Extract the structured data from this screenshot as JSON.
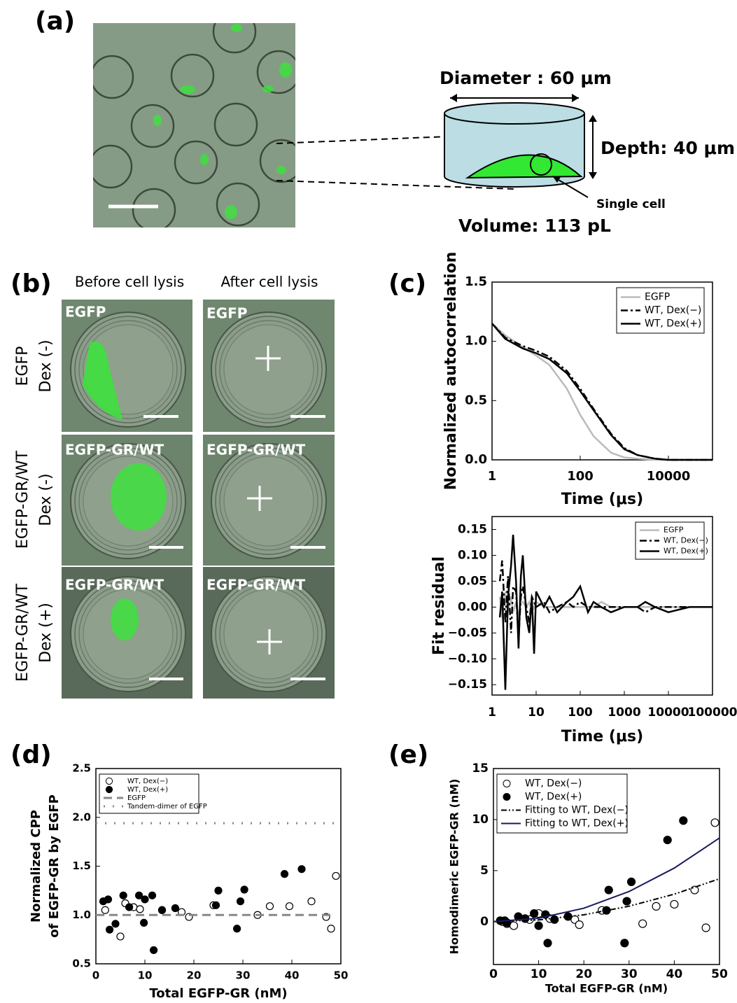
{
  "panel_labels": [
    "(a)",
    "(b)",
    "(c)",
    "(d)",
    "(e)"
  ],
  "panel_a": {
    "diameter": "Diameter : 60 μm",
    "depth": "Depth: 40 μm",
    "cell": "Single cell",
    "volume": "Volume: 113 pL"
  },
  "panel_b": {
    "columns": [
      "Before cell lysis",
      "After cell lysis"
    ],
    "rows": [
      [
        "EGFP",
        "Dex (-)"
      ],
      [
        "EGFP-GR/WT",
        "Dex (-)"
      ],
      [
        "EGFP-GR/WT",
        "Dex (+)"
      ]
    ],
    "image_labels": [
      [
        "EGFP",
        "EGFP"
      ],
      [
        "EGFP-GR/WT",
        "EGFP-GR/WT"
      ],
      [
        "EGFP-GR/WT",
        "EGFP-GR/WT"
      ]
    ]
  },
  "chart_data": [
    {
      "type": "line",
      "xscale": "log",
      "xlabel": "Time (μs)",
      "ylabel": "Normalized autocorrelation",
      "xlim": [
        1,
        100000
      ],
      "xticks": [
        1,
        100,
        10000
      ],
      "ylim": [
        0,
        1.5
      ],
      "yticks": [
        {
          "value": 0,
          "label": "0.0"
        },
        0.5,
        {
          "value": 1,
          "label": "1.0"
        },
        1.5
      ],
      "legend": "upper right",
      "series": [
        {
          "name": "EGFP",
          "color": "#bbbbbb",
          "style": "solid",
          "kind": "line",
          "x": [
            1,
            2,
            5,
            10,
            20,
            50,
            100,
            200,
            500,
            1000,
            2000,
            5000,
            10000,
            100000
          ],
          "values": [
            1.15,
            1.05,
            0.95,
            0.88,
            0.8,
            0.6,
            0.38,
            0.2,
            0.06,
            0.02,
            0.01,
            0,
            0,
            0
          ]
        },
        {
          "name": "WT, Dex(−)",
          "color": "#000000",
          "style": "dashdot",
          "kind": "line",
          "x": [
            1,
            2,
            5,
            10,
            20,
            50,
            100,
            200,
            500,
            1000,
            2000,
            5000,
            10000,
            100000
          ],
          "values": [
            1.15,
            1.03,
            0.96,
            0.92,
            0.87,
            0.75,
            0.6,
            0.43,
            0.22,
            0.1,
            0.04,
            0.01,
            0,
            0
          ]
        },
        {
          "name": "WT, Dex(+)",
          "color": "#000000",
          "style": "solid",
          "kind": "line",
          "x": [
            1,
            2,
            5,
            10,
            20,
            50,
            100,
            200,
            500,
            1000,
            2000,
            5000,
            10000,
            100000
          ],
          "values": [
            1.15,
            1.02,
            0.94,
            0.9,
            0.85,
            0.73,
            0.58,
            0.42,
            0.21,
            0.09,
            0.04,
            0.01,
            0,
            0
          ]
        }
      ]
    },
    {
      "type": "line",
      "xscale": "log",
      "xlabel": "Time (μs)",
      "ylabel": "Fit residual",
      "xlim": [
        1,
        100000
      ],
      "xticks": [
        1,
        10,
        100,
        1000,
        10000,
        100000
      ],
      "ylim": [
        -0.17,
        0.175
      ],
      "yticks": [
        {
          "value": -0.15,
          "label": "−0.15"
        },
        {
          "value": -0.1,
          "label": "−0.10"
        },
        {
          "value": -0.05,
          "label": "−0.05"
        },
        {
          "value": 0,
          "label": "0.00"
        },
        0.05,
        {
          "value": 0.1,
          "label": "0.10"
        },
        0.15
      ],
      "legend": "upper right",
      "series": [
        {
          "name": "EGFP",
          "color": "#bbbbbb",
          "style": "solid",
          "kind": "line",
          "x": [
            1.5,
            1.7,
            2,
            2.3,
            2.7,
            3,
            3.5,
            4,
            4.5,
            5,
            6,
            7,
            8,
            9,
            10,
            15,
            20,
            30,
            50,
            70,
            100,
            150,
            200,
            300,
            500,
            1000,
            2000,
            3000,
            5000,
            10000,
            30000,
            100000
          ],
          "values": [
            0.02,
            -0.02,
            0.03,
            -0.01,
            0.02,
            -0.01,
            0.01,
            -0.02,
            0.01,
            0.01,
            0,
            0.01,
            -0.01,
            0,
            0.01,
            0,
            0,
            0,
            0,
            0,
            0,
            0,
            0,
            0.01,
            0,
            0,
            0,
            0,
            0,
            0,
            0,
            0
          ]
        },
        {
          "name": "WT, Dex(−)",
          "color": "#000000",
          "style": "dashdot",
          "kind": "line",
          "x": [
            1.5,
            1.7,
            2,
            2.3,
            2.7,
            3,
            3.5,
            4,
            4.5,
            5,
            6,
            7,
            8,
            9,
            10,
            15,
            20,
            30,
            50,
            70,
            100,
            150,
            200,
            300,
            500,
            1000,
            2000,
            3000,
            5000,
            10000,
            30000,
            100000
          ],
          "values": [
            0.05,
            0.09,
            -0.03,
            0.06,
            -0.05,
            0.04,
            0.03,
            -0.06,
            0.02,
            0.04,
            0,
            -0.03,
            0.02,
            0.01,
            0,
            0.01,
            -0.01,
            0,
            0.01,
            0,
            0.01,
            0,
            0,
            0,
            0,
            0,
            0,
            -0.01,
            0,
            0,
            0,
            0
          ]
        },
        {
          "name": "WT, Dex(+)",
          "color": "#000000",
          "style": "solid",
          "kind": "line",
          "x": [
            1.5,
            1.7,
            2,
            2.3,
            2.7,
            3,
            3.5,
            4,
            4.5,
            5,
            6,
            7,
            8,
            9,
            10,
            15,
            20,
            30,
            50,
            70,
            100,
            150,
            200,
            300,
            500,
            1000,
            2000,
            3000,
            5000,
            10000,
            30000,
            100000
          ],
          "values": [
            -0.02,
            0.03,
            -0.16,
            0.02,
            0.08,
            0.14,
            0.05,
            -0.08,
            0.06,
            0.1,
            -0.02,
            -0.05,
            0.02,
            -0.09,
            0.03,
            0,
            0.02,
            -0.01,
            0.01,
            0.02,
            0.04,
            -0.01,
            0.01,
            0,
            -0.01,
            0,
            0,
            0.01,
            0,
            -0.01,
            0,
            0
          ]
        }
      ]
    },
    {
      "type": "scatter",
      "xlabel": "Total EGFP-GR (nM)",
      "ylabel": [
        "Normalized CPP",
        "of EGFP-GR by EGFP"
      ],
      "xlim": [
        0,
        50
      ],
      "xticks": [
        0,
        10,
        20,
        30,
        40,
        50
      ],
      "ylim": [
        0.5,
        2.5
      ],
      "yticks": [
        0.5,
        {
          "value": 1,
          "label": "1.0"
        },
        1.5,
        {
          "value": 2,
          "label": "2.0"
        },
        2.5
      ],
      "legend": "upper left",
      "series": [
        {
          "name": "WT, Dex(−)",
          "color": "#000000",
          "kind": "scatter",
          "marker": "open",
          "x": [
            1.9,
            5,
            6,
            7.7,
            9,
            13.5,
            17.5,
            19,
            24,
            33,
            35.5,
            39.5,
            44,
            47,
            48,
            49
          ],
          "values": [
            1.05,
            0.78,
            1.12,
            1.08,
            1.06,
            1.05,
            1.03,
            0.98,
            1.1,
            1.0,
            1.09,
            1.09,
            1.14,
            0.98,
            0.86,
            1.4
          ]
        },
        {
          "name": "WT, Dex(+)",
          "color": "#000000",
          "kind": "scatter",
          "marker": "filled",
          "x": [
            1.5,
            2.5,
            2.8,
            4,
            5.6,
            6.8,
            8.8,
            9.8,
            10,
            11.5,
            11.8,
            13.5,
            16.2,
            24.5,
            25,
            28.8,
            29.5,
            30.3,
            38.5,
            42
          ],
          "values": [
            1.14,
            1.16,
            0.85,
            0.91,
            1.2,
            1.08,
            1.2,
            0.92,
            1.16,
            1.2,
            0.64,
            1.05,
            1.07,
            1.1,
            1.25,
            0.86,
            1.14,
            1.26,
            1.42,
            1.47
          ]
        },
        {
          "name": "EGFP",
          "color": "#888888",
          "kind": "line",
          "style": "dashed",
          "x": [
            0,
            48
          ],
          "values": [
            1,
            1
          ]
        },
        {
          "name": "Tandem-dimer of EGFP",
          "color": "#888888",
          "kind": "line",
          "style": "dotted",
          "x": [
            0,
            50
          ],
          "values": [
            1.94,
            1.94
          ]
        }
      ]
    },
    {
      "type": "scatter",
      "xlabel": "Total EGFP-GR (nM)",
      "ylabel": "Homodimeric EGFP-GR (nM)",
      "xlim": [
        0,
        50
      ],
      "xticks": [
        0,
        10,
        20,
        30,
        40,
        50
      ],
      "ylim": [
        -4.2,
        15
      ],
      "yticks": [
        0,
        5,
        10,
        15
      ],
      "legend": "upper left",
      "series": [
        {
          "name": "WT, Dex(−)",
          "color": "#000000",
          "kind": "scatter",
          "marker": "open",
          "x": [
            2,
            3,
            4.5,
            8,
            10,
            12.5,
            18,
            19,
            24,
            33,
            36,
            40,
            44.5,
            47,
            49
          ],
          "values": [
            0,
            -0.2,
            -0.4,
            0.2,
            0.8,
            0.3,
            0.2,
            -0.3,
            1.1,
            -0.2,
            1.5,
            1.7,
            3.1,
            -0.6,
            9.7
          ]
        },
        {
          "name": "WT, Dex(+)",
          "color": "#000000",
          "kind": "scatter",
          "marker": "filled",
          "x": [
            1.5,
            2.5,
            3,
            5.5,
            7,
            9,
            10,
            11.5,
            12,
            13.5,
            16.5,
            25,
            25.5,
            29,
            29.5,
            30.5,
            38.5,
            42
          ],
          "values": [
            0.1,
            0.1,
            -0.1,
            0.5,
            0.3,
            0.8,
            -0.4,
            0.7,
            -2.1,
            0.2,
            0.5,
            1.1,
            3.1,
            -2.1,
            2.0,
            3.9,
            8.0,
            9.9
          ]
        },
        {
          "name": "Fitting to WT, Dex(−)",
          "color": "#000000",
          "kind": "line",
          "style": "dashdotdot",
          "x": [
            0,
            10,
            20,
            30,
            40,
            50
          ],
          "values": [
            0,
            0.17,
            0.67,
            1.51,
            2.69,
            4.2
          ]
        },
        {
          "name": "Fitting to WT, Dex(+)",
          "color": "#1a1a5e",
          "kind": "line",
          "style": "solid",
          "x": [
            0,
            10,
            20,
            30,
            40,
            50
          ],
          "values": [
            0,
            0.33,
            1.31,
            2.95,
            5.25,
            8.2
          ]
        }
      ]
    }
  ]
}
